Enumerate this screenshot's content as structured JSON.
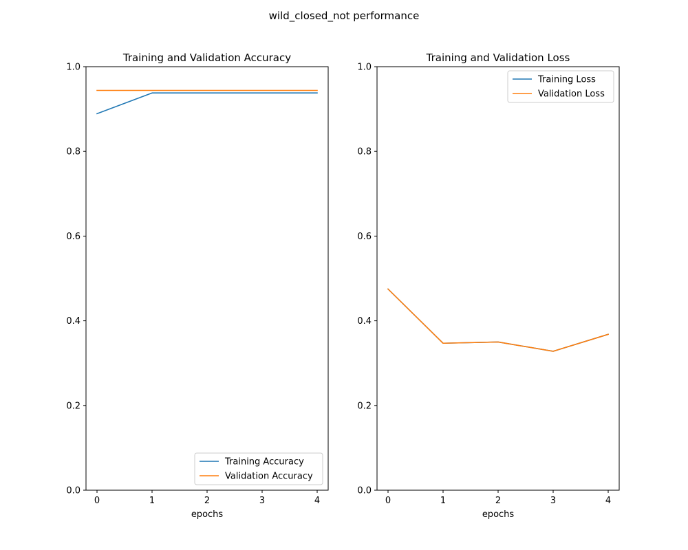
{
  "figure": {
    "title": "wild_closed_not performance"
  },
  "chart_data": [
    {
      "type": "line",
      "title": "Training and Validation Accuracy",
      "xlabel": "epochs",
      "ylabel": "",
      "x": [
        0,
        1,
        2,
        3,
        4
      ],
      "xlim": [
        -0.2,
        4.2
      ],
      "ylim": [
        0.0,
        1.0
      ],
      "xticks": [
        "0",
        "1",
        "2",
        "3",
        "4"
      ],
      "yticks": [
        "0.0",
        "0.2",
        "0.4",
        "0.6",
        "0.8",
        "1.0"
      ],
      "grid": false,
      "legend_position": "bottom-right",
      "series": [
        {
          "name": "Training Accuracy",
          "color": "#1f77b4",
          "values": [
            0.889,
            0.938,
            0.938,
            0.938,
            0.938
          ]
        },
        {
          "name": "Validation Accuracy",
          "color": "#ff7f0e",
          "values": [
            0.944,
            0.944,
            0.944,
            0.944,
            0.944
          ]
        }
      ]
    },
    {
      "type": "line",
      "title": "Training and Validation Loss",
      "xlabel": "epochs",
      "ylabel": "",
      "x": [
        0,
        1,
        2,
        3,
        4
      ],
      "xlim": [
        -0.2,
        4.2
      ],
      "ylim": [
        0.0,
        1.0
      ],
      "xticks": [
        "0",
        "1",
        "2",
        "3",
        "4"
      ],
      "yticks": [
        "0.0",
        "0.2",
        "0.4",
        "0.6",
        "0.8",
        "1.0"
      ],
      "grid": false,
      "legend_position": "top-right",
      "series": [
        {
          "name": "Training Loss",
          "color": "#1f77b4",
          "values": [
            0.475,
            0.347,
            0.35,
            0.328,
            0.368
          ]
        },
        {
          "name": "Validation Loss",
          "color": "#ff7f0e",
          "values": [
            0.475,
            0.347,
            0.35,
            0.328,
            0.368
          ]
        }
      ]
    }
  ]
}
